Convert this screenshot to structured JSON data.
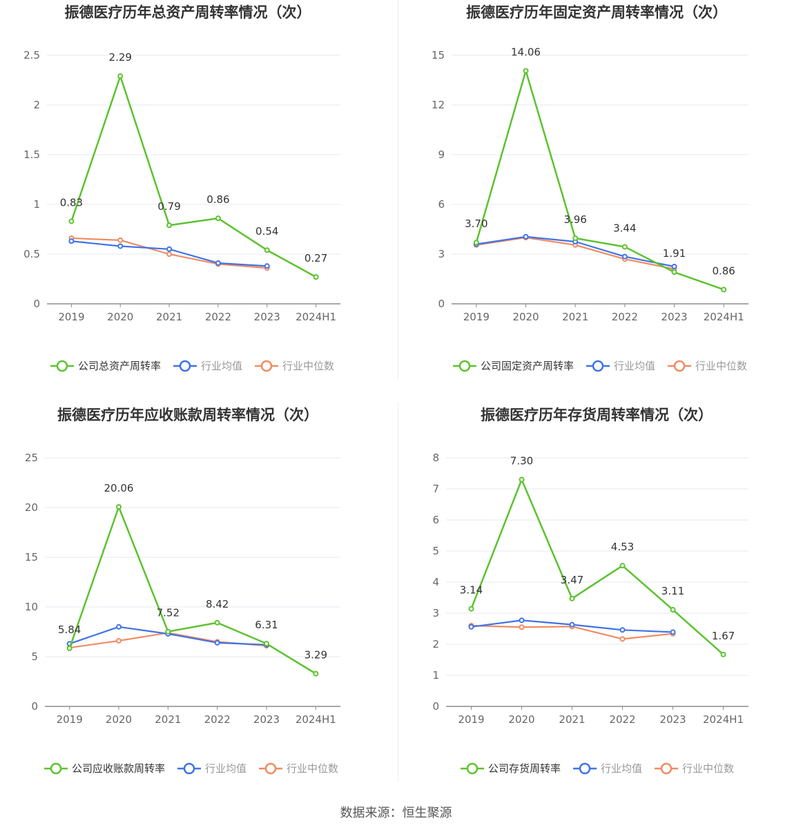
{
  "colors": {
    "company": "#5cc22e",
    "avg": "#3f72e6",
    "median": "#f08a62",
    "grid": "#e6e9f0",
    "axis": "#8c8c8c"
  },
  "legend_labels": {
    "avg": "行业均值",
    "median": "行业中位数"
  },
  "source": "数据来源：恒生聚源",
  "chart_data": [
    {
      "type": "line",
      "title": "振德医疗历年总资产周转率情况（次）",
      "categories": [
        "2019",
        "2020",
        "2021",
        "2022",
        "2023",
        "2024H1"
      ],
      "ylim": [
        0,
        2.5
      ],
      "yticks": [
        "0",
        "0.5",
        "1",
        "1.5",
        "2",
        "2.5"
      ],
      "series": [
        {
          "name": "公司总资产周转率",
          "key": "company",
          "values": [
            0.83,
            2.29,
            0.79,
            0.86,
            0.54,
            0.27
          ],
          "labels": [
            "0.83",
            "2.29",
            "0.79",
            "0.86",
            "0.54",
            "0.27"
          ]
        },
        {
          "name": "行业均值",
          "key": "avg",
          "values": [
            0.63,
            0.58,
            0.55,
            0.41,
            0.38,
            null
          ]
        },
        {
          "name": "行业中位数",
          "key": "median",
          "values": [
            0.66,
            0.64,
            0.5,
            0.4,
            0.36,
            null
          ]
        }
      ]
    },
    {
      "type": "line",
      "title": "振德医疗历年固定资产周转率情况（次）",
      "categories": [
        "2019",
        "2020",
        "2021",
        "2022",
        "2023",
        "2024H1"
      ],
      "ylim": [
        0,
        15
      ],
      "yticks": [
        "0",
        "3",
        "6",
        "9",
        "12",
        "15"
      ],
      "series": [
        {
          "name": "公司固定资产周转率",
          "key": "company",
          "values": [
            3.7,
            14.06,
            3.96,
            3.44,
            1.91,
            0.86
          ],
          "labels": [
            "3.70",
            "14.06",
            "3.96",
            "3.44",
            "1.91",
            "0.86"
          ]
        },
        {
          "name": "行业均值",
          "key": "avg",
          "values": [
            3.6,
            4.05,
            3.75,
            2.85,
            2.25,
            null
          ]
        },
        {
          "name": "行业中位数",
          "key": "median",
          "values": [
            3.55,
            4.0,
            3.55,
            2.7,
            2.1,
            null
          ]
        }
      ]
    },
    {
      "type": "line",
      "title": "振德医疗历年应收账款周转率情况（次）",
      "categories": [
        "2019",
        "2020",
        "2021",
        "2022",
        "2023",
        "2024H1"
      ],
      "ylim": [
        0,
        25
      ],
      "yticks": [
        "0",
        "5",
        "10",
        "15",
        "20",
        "25"
      ],
      "series": [
        {
          "name": "公司应收账款周转率",
          "key": "company",
          "values": [
            5.84,
            20.06,
            7.52,
            8.42,
            6.31,
            3.29
          ],
          "labels": [
            "5.84",
            "20.06",
            "7.52",
            "8.42",
            "6.31",
            "3.29"
          ]
        },
        {
          "name": "行业均值",
          "key": "avg",
          "values": [
            6.3,
            8.0,
            7.3,
            6.4,
            6.2,
            null
          ]
        },
        {
          "name": "行业中位数",
          "key": "median",
          "values": [
            5.9,
            6.6,
            7.4,
            6.5,
            6.1,
            null
          ]
        }
      ]
    },
    {
      "type": "line",
      "title": "振德医疗历年存货周转率情况（次）",
      "categories": [
        "2019",
        "2020",
        "2021",
        "2022",
        "2023",
        "2024H1"
      ],
      "ylim": [
        0,
        8
      ],
      "yticks": [
        "0",
        "1",
        "2",
        "3",
        "4",
        "5",
        "6",
        "7",
        "8"
      ],
      "series": [
        {
          "name": "公司存货周转率",
          "key": "company",
          "values": [
            3.14,
            7.3,
            3.47,
            4.53,
            3.11,
            1.67
          ],
          "labels": [
            "3.14",
            "7.30",
            "3.47",
            "4.53",
            "3.11",
            "1.67"
          ]
        },
        {
          "name": "行业均值",
          "key": "avg",
          "values": [
            2.56,
            2.77,
            2.63,
            2.46,
            2.39,
            null
          ]
        },
        {
          "name": "行业中位数",
          "key": "median",
          "values": [
            2.6,
            2.55,
            2.57,
            2.17,
            2.34,
            null
          ]
        }
      ]
    }
  ]
}
